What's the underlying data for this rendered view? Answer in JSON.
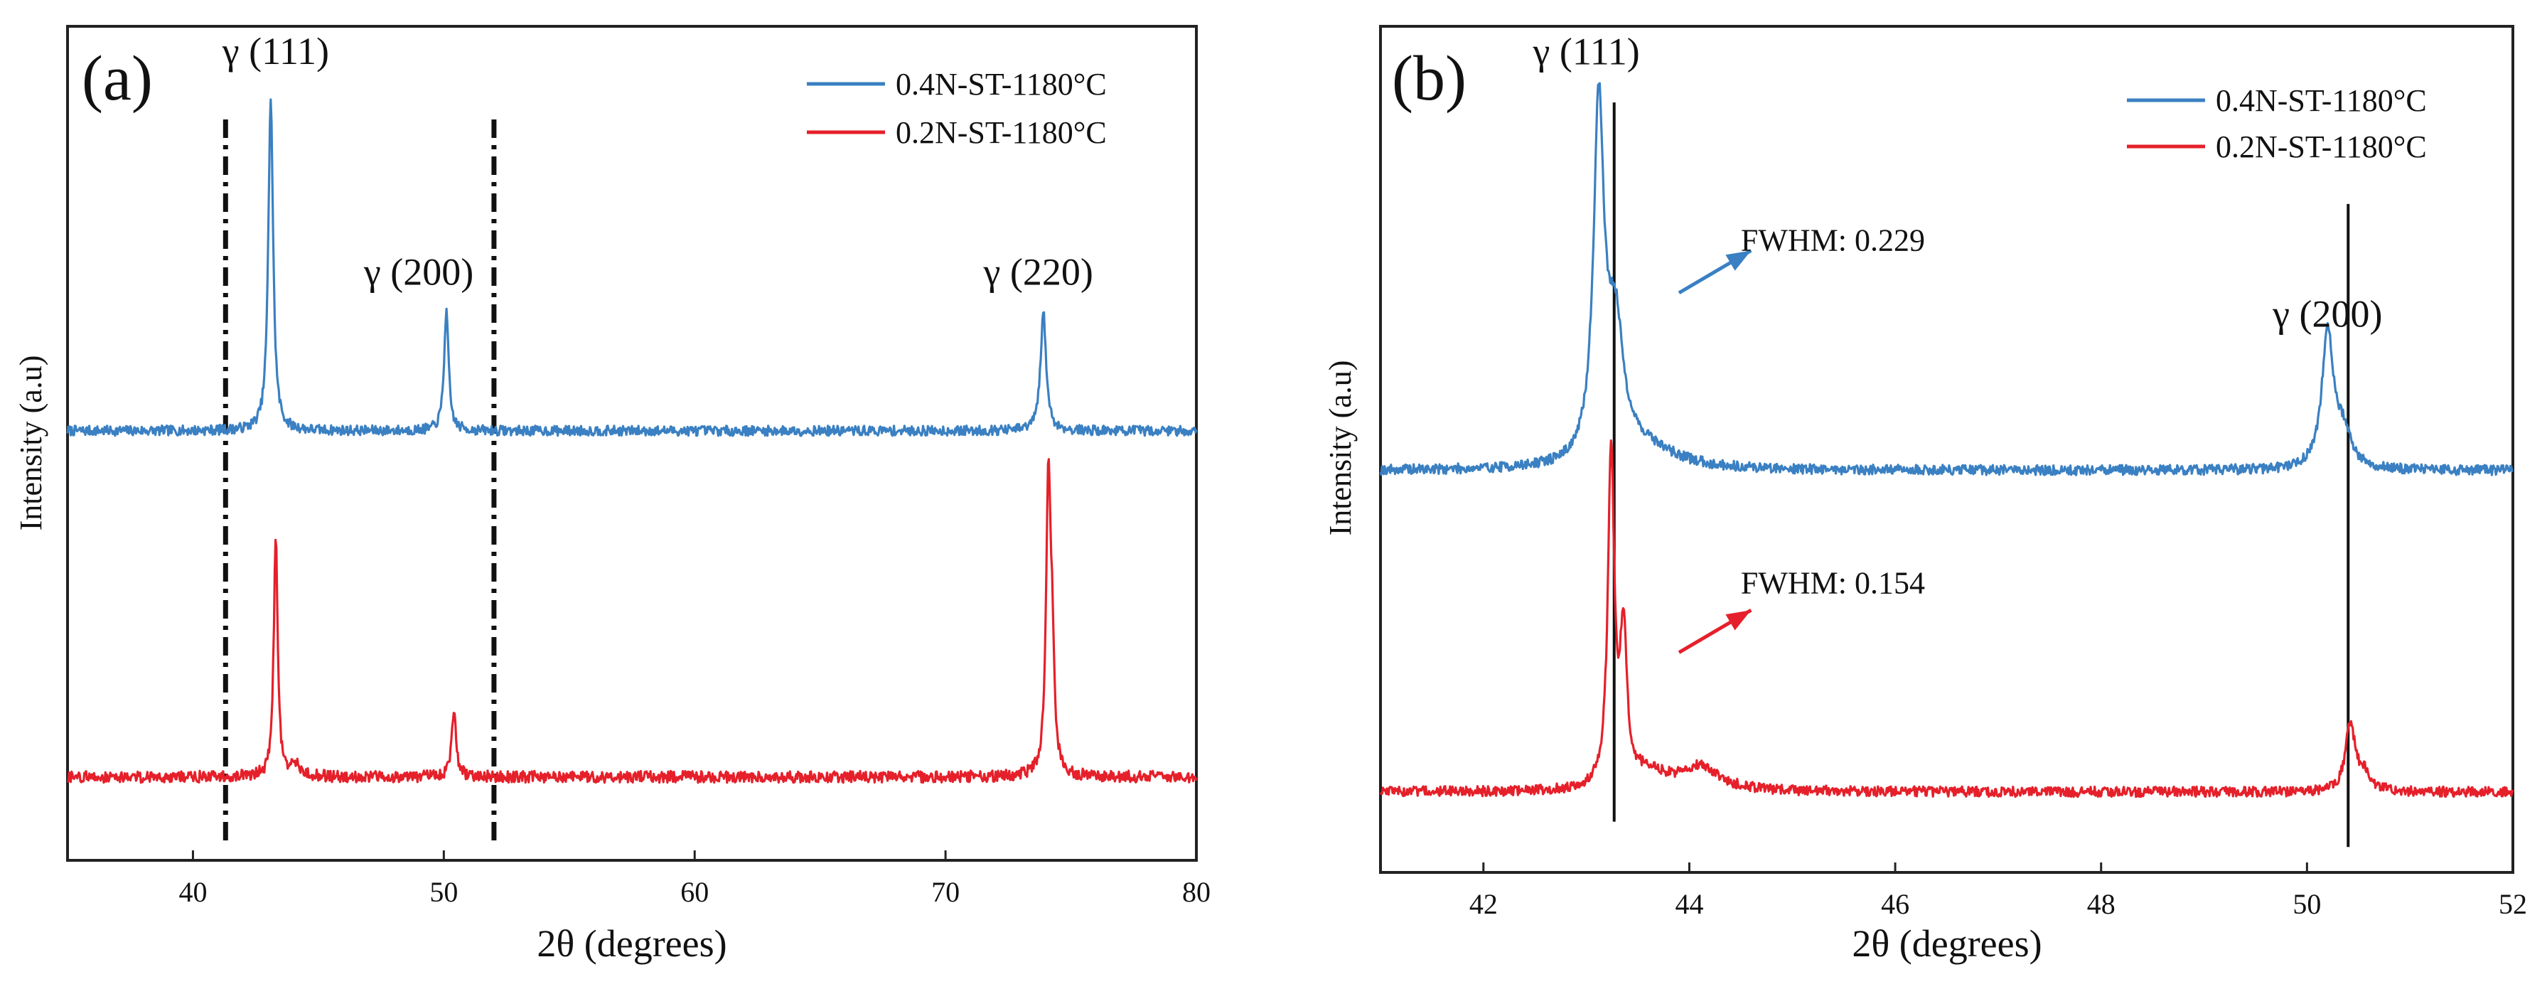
{
  "chart_data": [
    {
      "type": "line",
      "panel": "(a)",
      "xlabel": "2θ (degrees)",
      "ylabel": "Intensity (a.u)",
      "xlim": [
        35,
        80
      ],
      "ylim": [
        0,
        1
      ],
      "xticks": [
        40,
        50,
        60,
        70,
        80
      ],
      "grid": false,
      "legend": "top-right",
      "colors": {
        "blue": "#3a80c2",
        "red": "#e5202a"
      },
      "series": [
        {
          "name": "0.4N-ST-1180°C",
          "color": "#3a80c2",
          "baseline": 0.515,
          "noise": 0.006,
          "peaks": [
            {
              "x": 43.1,
              "height": 0.4,
              "width": 0.17
            },
            {
              "x": 50.1,
              "height": 0.143,
              "width": 0.16
            },
            {
              "x": 73.9,
              "height": 0.141,
              "width": 0.2
            }
          ]
        },
        {
          "name": "0.2N-ST-1180°C",
          "color": "#e5202a",
          "baseline": 0.1,
          "noise": 0.007,
          "peaks": [
            {
              "x": 43.3,
              "height": 0.288,
              "width": 0.14
            },
            {
              "x": 44.1,
              "height": 0.012,
              "width": 0.4
            },
            {
              "x": 50.4,
              "height": 0.08,
              "width": 0.16
            },
            {
              "x": 74.1,
              "height": 0.351,
              "width": 0.16
            },
            {
              "x": 74.25,
              "height": 0.12,
              "width": 0.15
            }
          ]
        }
      ],
      "annotations": [
        {
          "text": "γ (111)",
          "x": 43.3,
          "y": 0.955
        },
        {
          "text": "γ (200)",
          "x": 49.0,
          "y": 0.69
        },
        {
          "text": "γ (220)",
          "x": 73.7,
          "y": 0.69
        }
      ],
      "vlines": [
        {
          "x": 41.3,
          "style": "dashdot"
        },
        {
          "x": 52.0,
          "style": "dashdot"
        }
      ]
    },
    {
      "type": "line",
      "panel": "(b)",
      "xlabel": "2θ (degrees)",
      "ylabel": "Intensity (a.u)",
      "xlim": [
        41,
        52
      ],
      "ylim": [
        0,
        1
      ],
      "xticks": [
        42,
        44,
        46,
        48,
        50,
        52
      ],
      "grid": false,
      "legend": "top-right",
      "series": [
        {
          "name": "0.4N-ST-1180°C",
          "color": "#3a80c2",
          "baseline": 0.475,
          "noise": 0.006,
          "peaks": [
            {
              "x": 43.12,
              "height": 0.41,
              "width": 0.09
            },
            {
              "x": 43.28,
              "height": 0.15,
              "width": 0.14
            },
            {
              "x": 43.55,
              "height": 0.025,
              "width": 0.55
            },
            {
              "x": 50.2,
              "height": 0.16,
              "width": 0.1
            },
            {
              "x": 50.35,
              "height": 0.04,
              "width": 0.14
            }
          ]
        },
        {
          "name": "0.2N-ST-1180°C",
          "color": "#e5202a",
          "baseline": 0.095,
          "noise": 0.006,
          "peaks": [
            {
              "x": 43.24,
              "height": 0.395,
              "width": 0.055
            },
            {
              "x": 43.36,
              "height": 0.175,
              "width": 0.06
            },
            {
              "x": 43.6,
              "height": 0.02,
              "width": 0.3
            },
            {
              "x": 44.1,
              "height": 0.028,
              "width": 0.35
            },
            {
              "x": 50.42,
              "height": 0.08,
              "width": 0.08
            },
            {
              "x": 50.55,
              "height": 0.02,
              "width": 0.12
            }
          ]
        }
      ],
      "annotations": [
        {
          "text": "γ (111)",
          "x": 43.0,
          "y": 0.955
        },
        {
          "text": "γ (200)",
          "x": 50.2,
          "y": 0.645
        },
        {
          "text": "FWHM: 0.229",
          "x": 44.5,
          "y": 0.735
        },
        {
          "text": "FWHM: 0.154",
          "x": 44.5,
          "y": 0.33
        }
      ],
      "arrows": [
        {
          "from": [
            43.9,
            0.685
          ],
          "to": [
            44.6,
            0.735
          ],
          "color": "#3a80c2"
        },
        {
          "from": [
            43.9,
            0.26
          ],
          "to": [
            44.6,
            0.31
          ],
          "color": "#e5202a"
        }
      ],
      "vlines": [
        {
          "x": 43.27,
          "style": "solid",
          "y0": 0.06,
          "y1": 0.91
        },
        {
          "x": 50.4,
          "style": "solid",
          "y0": 0.03,
          "y1": 0.79
        }
      ]
    }
  ]
}
